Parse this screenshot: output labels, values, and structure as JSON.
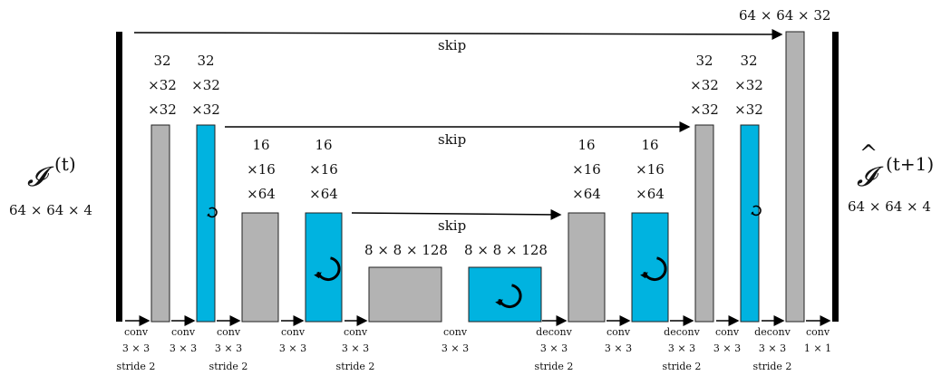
{
  "colors": {
    "gray_block": "#b3b3b3",
    "recurrent_block": "#00b3e0",
    "frame_bar": "#000000"
  },
  "input": {
    "symbol": "𝓘",
    "superscript": "(t)",
    "dims": "64 × 64 × 4"
  },
  "output": {
    "symbol": "𝓘",
    "superscript": "(t+1)",
    "hat": "^",
    "dims": "64 × 64 × 4"
  },
  "top_dims": "64 × 64 × 32",
  "skip_label": "skip",
  "block_dims": {
    "b1": [
      "32",
      "×32",
      "×32"
    ],
    "b2": [
      "32",
      "×32",
      "×32"
    ],
    "b3": [
      "16",
      "×16",
      "×64"
    ],
    "b4": [
      "16",
      "×16",
      "×64"
    ],
    "b5": "8 × 8 × 128",
    "b6": "8 × 8 × 128",
    "b7": [
      "16",
      "×16",
      "×64"
    ],
    "b8": [
      "16",
      "×16",
      "×64"
    ],
    "b9": [
      "32",
      "×32",
      "×32"
    ],
    "b10": [
      "32",
      "×32",
      "×32"
    ]
  },
  "ops": [
    [
      "conv",
      "3 × 3",
      "stride 2"
    ],
    [
      "conv",
      "3 × 3"
    ],
    [
      "conv",
      "3 × 3",
      "stride 2"
    ],
    [
      "conv",
      "3 × 3"
    ],
    [
      "conv",
      "3 × 3",
      "stride 2"
    ],
    [
      "conv",
      "3 × 3"
    ],
    [
      "deconv",
      "3 × 3",
      "stride 2"
    ],
    [
      "conv",
      "3 × 3"
    ],
    [
      "deconv",
      "3 × 3",
      "stride 2"
    ],
    [
      "conv",
      "3 × 3"
    ],
    [
      "deconv",
      "3 × 3",
      "stride 2"
    ],
    [
      "conv",
      "1 × 1"
    ]
  ]
}
